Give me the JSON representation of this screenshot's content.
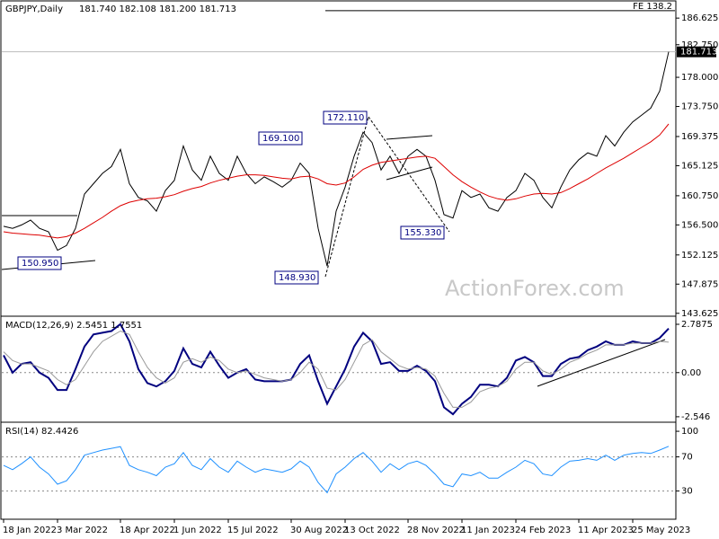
{
  "chart_data": [
    {
      "type": "line",
      "title": "GBPJPY,Daily",
      "subtitle": "181.740 182.108 181.200 181.713",
      "categories": [
        "18 Jan 2022",
        null,
        null,
        null,
        null,
        null,
        "3 Mar 2022",
        null,
        null,
        null,
        null,
        null,
        null,
        "18 Apr 2022",
        null,
        null,
        null,
        null,
        null,
        "1 Jun 2022",
        null,
        null,
        null,
        null,
        null,
        "15 Jul 2022",
        null,
        null,
        null,
        null,
        null,
        null,
        "30 Aug 2022",
        null,
        null,
        null,
        null,
        null,
        "13 Oct 2022",
        null,
        null,
        null,
        null,
        null,
        null,
        "28 Nov 2022",
        null,
        null,
        null,
        null,
        null,
        "11 Jan 2023",
        null,
        null,
        null,
        null,
        null,
        "24 Feb 2023",
        null,
        null,
        null,
        null,
        null,
        null,
        "11 Apr 2023",
        null,
        null,
        null,
        null,
        null,
        "25 May 2023",
        null,
        null,
        null,
        null
      ],
      "series": [
        {
          "color": "#000000",
          "values": [
            156.3,
            156.0,
            156.5,
            157.2,
            156.0,
            155.5,
            152.8,
            153.5,
            156.0,
            161.0,
            162.5,
            164.0,
            165.0,
            167.5,
            162.5,
            160.5,
            160.0,
            158.5,
            161.5,
            163.0,
            168.0,
            164.5,
            163.0,
            166.5,
            164.0,
            163.0,
            166.5,
            164.0,
            162.5,
            163.5,
            162.8,
            162.0,
            163.0,
            165.5,
            164.0,
            156.0,
            150.5,
            158.5,
            162.0,
            166.5,
            170.0,
            168.5,
            164.5,
            166.5,
            164.0,
            166.5,
            167.5,
            166.5,
            163.0,
            158.0,
            157.5,
            161.5,
            160.5,
            161.0,
            159.0,
            158.5,
            160.5,
            161.5,
            164.0,
            163.0,
            160.5,
            159.0,
            162.0,
            164.5,
            166.0,
            167.0,
            166.5,
            169.5,
            168.0,
            170.0,
            171.5,
            172.5,
            173.5,
            176.0,
            181.713
          ]
        },
        {
          "color": "#dd0000",
          "values": [
            155.5,
            155.3,
            155.2,
            155.1,
            155.0,
            154.8,
            154.6,
            154.8,
            155.3,
            156.0,
            156.8,
            157.6,
            158.5,
            159.3,
            159.8,
            160.1,
            160.3,
            160.4,
            160.6,
            160.9,
            161.4,
            161.8,
            162.1,
            162.6,
            163.0,
            163.3,
            163.6,
            163.8,
            163.8,
            163.7,
            163.5,
            163.3,
            163.2,
            163.5,
            163.6,
            163.2,
            162.5,
            162.3,
            162.6,
            163.5,
            164.6,
            165.2,
            165.6,
            165.8,
            166.0,
            166.2,
            166.4,
            166.5,
            166.2,
            165.0,
            163.8,
            162.8,
            162.0,
            161.3,
            160.7,
            160.3,
            160.1,
            160.3,
            160.7,
            161.0,
            161.1,
            161.0,
            161.2,
            161.8,
            162.5,
            163.2,
            164.0,
            164.8,
            165.5,
            166.2,
            167.0,
            167.8,
            168.6,
            169.6,
            171.2
          ]
        }
      ],
      "ylim": [
        143.2,
        189.0
      ],
      "yticks": [
        186.625,
        {
          "value": 182.75,
          "label": "182.750"
        },
        {
          "value": 178,
          "label": "178.000"
        },
        {
          "value": 173.75,
          "label": "173.750"
        },
        169.375,
        165.125,
        {
          "value": 160.75,
          "label": "160.750"
        },
        {
          "value": 156.5,
          "label": "156.500"
        },
        152.125,
        147.875,
        143.625
      ],
      "last_price": 181.713,
      "fe_level": {
        "label": "FE 138.2",
        "value": 187.7
      },
      "annotations": [
        {
          "value": 172.11,
          "label": "172.110"
        },
        {
          "value": 169.1,
          "label": "169.100"
        },
        {
          "value": 155.33,
          "label": "155.330"
        },
        {
          "value": 150.95,
          "label": "150.950"
        },
        {
          "value": 148.93,
          "label": "148.930"
        }
      ],
      "watermark": "ActionForex.com"
    },
    {
      "type": "line",
      "title": "MACD(12,26,9) 2.5451 1.7551",
      "series": [
        {
          "color": "#00007f",
          "values": [
            1.0,
            0.0,
            0.5,
            0.6,
            0.0,
            -0.3,
            -1.0,
            -1.0,
            0.2,
            1.5,
            2.2,
            2.3,
            2.4,
            2.8,
            1.8,
            0.2,
            -0.6,
            -0.8,
            -0.5,
            0.1,
            1.4,
            0.5,
            0.3,
            1.2,
            0.4,
            -0.3,
            0.0,
            0.2,
            -0.4,
            -0.5,
            -0.5,
            -0.5,
            -0.4,
            0.5,
            1.0,
            -0.5,
            -1.8,
            -0.8,
            0.2,
            1.5,
            2.3,
            1.8,
            0.5,
            0.6,
            0.1,
            0.1,
            0.4,
            0.1,
            -0.5,
            -2.0,
            -2.4,
            -1.8,
            -1.4,
            -0.7,
            -0.7,
            -0.8,
            -0.3,
            0.7,
            0.9,
            0.6,
            -0.2,
            -0.2,
            0.5,
            0.8,
            0.9,
            1.3,
            1.5,
            1.8,
            1.6,
            1.6,
            1.8,
            1.7,
            1.7,
            2.0,
            2.5451
          ]
        },
        {
          "color": "#999999",
          "values": [
            1.2,
            0.7,
            0.5,
            0.5,
            0.3,
            0.1,
            -0.4,
            -0.7,
            -0.4,
            0.4,
            1.2,
            1.8,
            2.1,
            2.4,
            2.2,
            1.2,
            0.3,
            -0.3,
            -0.6,
            -0.3,
            0.6,
            0.8,
            0.6,
            0.9,
            0.7,
            0.2,
            0.0,
            0.1,
            -0.1,
            -0.3,
            -0.4,
            -0.5,
            -0.4,
            0.0,
            0.6,
            0.2,
            -0.9,
            -1.0,
            -0.4,
            0.6,
            1.6,
            1.9,
            1.2,
            0.8,
            0.4,
            0.2,
            0.3,
            0.2,
            -0.2,
            -1.2,
            -2.0,
            -2.0,
            -1.7,
            -1.1,
            -0.9,
            -0.8,
            -0.5,
            0.2,
            0.6,
            0.6,
            0.1,
            -0.1,
            0.2,
            0.6,
            0.8,
            1.1,
            1.3,
            1.6,
            1.6,
            1.6,
            1.7,
            1.7,
            1.7,
            1.8,
            1.7551
          ]
        }
      ],
      "ylim": [
        -2.81,
        3.15
      ],
      "yticks": [
        2.7875,
        {
          "value": 0,
          "label": "0.00"
        },
        -2.546
      ],
      "levels": [
        0
      ]
    },
    {
      "type": "line",
      "title": "RSI(14) 82.4426",
      "series": [
        {
          "color": "#1e90ff",
          "values": [
            60,
            55,
            62,
            70,
            58,
            50,
            38,
            42,
            55,
            72,
            75,
            78,
            80,
            82,
            60,
            55,
            52,
            48,
            58,
            62,
            75,
            60,
            55,
            68,
            58,
            52,
            65,
            58,
            52,
            56,
            54,
            52,
            56,
            65,
            58,
            40,
            28,
            50,
            58,
            68,
            75,
            65,
            52,
            62,
            55,
            62,
            65,
            60,
            50,
            38,
            35,
            50,
            48,
            52,
            45,
            45,
            52,
            58,
            66,
            62,
            50,
            48,
            58,
            65,
            66,
            68,
            66,
            72,
            66,
            72,
            74,
            75,
            74,
            78,
            82.4426
          ]
        }
      ],
      "ylim": [
        -2,
        108.5
      ],
      "yticks": [
        100,
        70,
        30
      ],
      "levels": [
        70,
        30
      ]
    }
  ]
}
